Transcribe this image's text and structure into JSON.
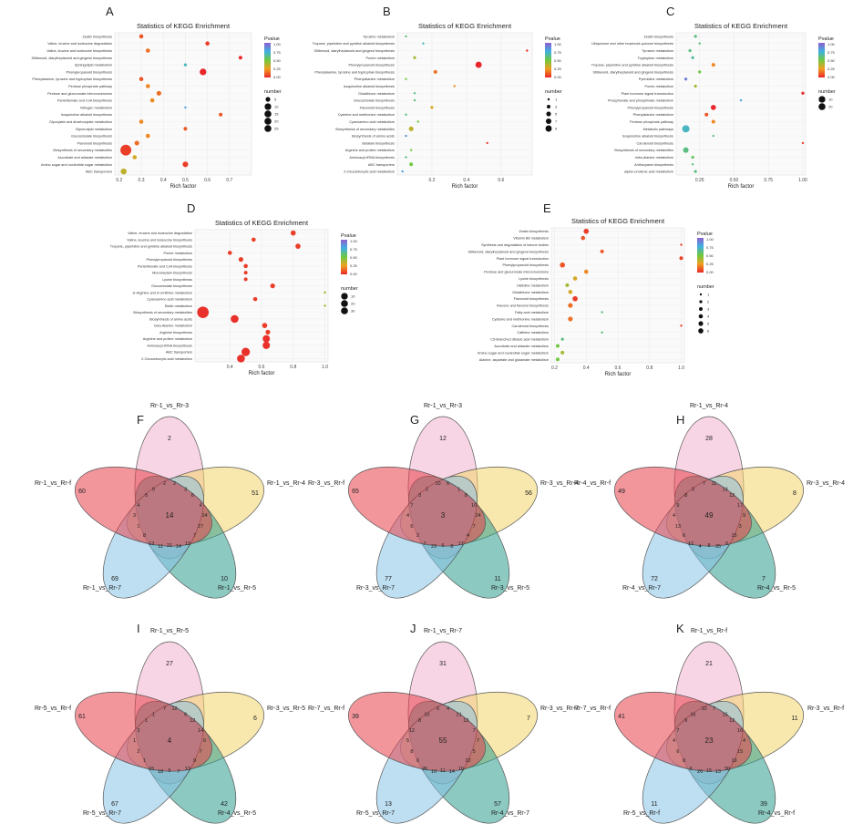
{
  "colors": {
    "high": "#e8262b",
    "mid": "#f0a020",
    "midlow": "#c8d030",
    "low": "#50c060",
    "lowest": "#9060c8",
    "grid": "#e4e4e4"
  },
  "dot_charts": [
    {
      "letter": "A",
      "title": "Statistics of KEGG Enrichment",
      "xlabel": "Rich factor",
      "xlim": [
        0.18,
        0.8
      ],
      "xticks": [
        "0.2",
        "0.3",
        "0.4",
        "0.5",
        "0.6",
        "0.7"
      ],
      "xtickvals": [
        0.2,
        0.3,
        0.4,
        0.5,
        0.6,
        0.7
      ],
      "legend_title": "Pvalue",
      "legend_ticks": [
        "1.00",
        "0.75",
        "0.50",
        "0.25",
        "0.00"
      ],
      "size_title": "number",
      "size_ticks": [
        "5",
        "10",
        "15",
        "20",
        "25"
      ],
      "terms": [
        "Zeatin biosynthesis",
        "Valine, leucine and isoleucine degradation",
        "Valine, leucine and isoleucine biosynthesis",
        "Stilbenoid, diarylheptanoid and gingerol biosynthesis",
        "Sphingolipid metabolism",
        "Phenylpropanoid biosynthesis",
        "Phenylalanine, tyrosine and tryptophan biosynthesis",
        "Pentose phosphate pathway",
        "Pentose and glucuronate interconversions",
        "Pantothenate and CoA biosynthesis",
        "Nitrogen metabolism",
        "Isoquinoline alkaloid biosynthesis",
        "Glyoxylate and dicarboxylate metabolism",
        "Glycerolipid metabolism",
        "Glucosinolate biosynthesis",
        "Flavonoid biosynthesis",
        "Biosynthesis of secondary metabolites",
        "Ascorbate and aldarate metabolism",
        "Amino sugar and nucleotide sugar metabolism",
        "ABC transporters"
      ],
      "rich": [
        0.3,
        0.6,
        0.33,
        0.75,
        0.5,
        0.58,
        0.3,
        0.33,
        0.38,
        0.35,
        0.5,
        0.66,
        0.3,
        0.5,
        0.33,
        0.28,
        0.23,
        0.27,
        0.5,
        0.22
      ],
      "pvalue": [
        0.1,
        0.05,
        0.15,
        0.01,
        0.7,
        0.0,
        0.1,
        0.2,
        0.15,
        0.2,
        0.8,
        0.1,
        0.2,
        0.1,
        0.2,
        0.15,
        0.05,
        0.3,
        0.05,
        0.35
      ],
      "number": [
        4,
        4,
        4,
        3,
        2,
        10,
        4,
        4,
        5,
        4,
        1,
        3,
        4,
        3,
        4,
        5,
        27,
        4,
        7,
        8
      ]
    },
    {
      "letter": "B",
      "title": "Statistics of KEGG Enrichment",
      "xlabel": "Rich factor",
      "xlim": [
        0.0,
        0.78
      ],
      "xticks": [
        "0.2",
        "0.4",
        "0.6"
      ],
      "xtickvals": [
        0.2,
        0.4,
        0.6
      ],
      "legend_title": "Pvalue",
      "legend_ticks": [
        "1.00",
        "0.75",
        "0.50",
        "0.25",
        "0.00"
      ],
      "size_title": "number",
      "size_ticks": [
        "1",
        "3",
        "5",
        "7",
        "9"
      ],
      "terms": [
        "Tyrosine metabolism",
        "Tropane, piperidine and pyridine alkaloid biosynthesis",
        "Stilbenoid, diarylheptanoid and gingerol biosynthesis",
        "Purine metabolism",
        "Phenylpropanoid biosynthesis",
        "Phenylalanine, tyrosine and tryptophan biosynthesis",
        "Phenylalanine metabolism",
        "Isoquinoline alkaloid biosynthesis",
        "Glutathione metabolism",
        "Glucosinolate biosynthesis",
        "Flavonoid biosynthesis",
        "Cysteine and methionine metabolism",
        "Cyanoamino acid metabolism",
        "Biosynthesis of secondary metabolites",
        "Biosynthesis of amino acids",
        "Betalain biosynthesis",
        "Arginine and proline metabolism",
        "Aminoacyl-tRNA biosynthesis",
        "ABC transporters",
        "2-Oxocarboxylic acid metabolism"
      ],
      "rich": [
        0.05,
        0.15,
        0.75,
        0.1,
        0.47,
        0.22,
        0.05,
        0.33,
        0.1,
        0.1,
        0.2,
        0.05,
        0.12,
        0.08,
        0.05,
        0.52,
        0.08,
        0.05,
        0.08,
        0.03
      ],
      "pvalue": [
        0.6,
        0.7,
        0.02,
        0.4,
        0.0,
        0.15,
        0.5,
        0.2,
        0.6,
        0.6,
        0.3,
        0.6,
        0.5,
        0.35,
        0.85,
        0.05,
        0.5,
        0.6,
        0.5,
        0.8
      ],
      "number": [
        1,
        1,
        1,
        2,
        9,
        3,
        1,
        1,
        1,
        1,
        2,
        1,
        1,
        5,
        1,
        1,
        1,
        1,
        3,
        1
      ]
    },
    {
      "letter": "C",
      "title": "Statistics of KEGG Enrichment",
      "xlabel": "Rich factor",
      "xlim": [
        0.08,
        1.02
      ],
      "xticks": [
        "0.25",
        "0.50",
        "0.75",
        "1.00"
      ],
      "xtickvals": [
        0.25,
        0.5,
        0.75,
        1.0
      ],
      "legend_title": "Pvalue",
      "legend_ticks": [
        "1.00",
        "0.75",
        "0.50",
        "0.25",
        "0.00"
      ],
      "size_title": "number",
      "size_ticks": [
        "10",
        "20"
      ],
      "terms": [
        "Zeatin biosynthesis",
        "Ubiquinone and other terpenoid-quinone biosynthesis",
        "Tyrosine metabolism",
        "Tryptophan metabolism",
        "Tropane, piperidine and pyridine alkaloid biosynthesis",
        "Stilbenoid, diarylheptanoid and gingerol biosynthesis",
        "Pyrimidine metabolism",
        "Purine metabolism",
        "Plant hormone signal transduction",
        "Phosphonate and phosphinate metabolism",
        "Phenylpropanoid biosynthesis",
        "Phenylalanine metabolism",
        "Pentose phosphate pathway",
        "Metabolic pathways",
        "Isoquinoline alkaloid biosynthesis",
        "Carotenoid biosynthesis",
        "Biosynthesis of secondary metabolites",
        "beta-Alanine metabolism",
        "Anthocyanin biosynthesis",
        "alpha-Linolenic acid metabolism"
      ],
      "rich": [
        0.22,
        0.25,
        0.18,
        0.2,
        0.35,
        0.25,
        0.15,
        0.22,
        1.0,
        0.55,
        0.35,
        0.3,
        0.35,
        0.15,
        0.35,
        1.0,
        0.15,
        0.2,
        0.2,
        0.22
      ],
      "pvalue": [
        0.6,
        0.6,
        0.6,
        0.65,
        0.2,
        0.5,
        0.9,
        0.4,
        0.0,
        0.8,
        0.0,
        0.1,
        0.2,
        0.7,
        0.6,
        0.05,
        0.6,
        0.55,
        0.6,
        0.6
      ],
      "number": [
        2,
        1,
        2,
        2,
        3,
        2,
        2,
        2,
        2,
        1,
        6,
        3,
        3,
        12,
        1,
        1,
        7,
        2,
        1,
        2
      ]
    },
    {
      "letter": "D",
      "title": "Statistics of KEGG Enrichment",
      "xlabel": "Rich factor",
      "xlim": [
        0.18,
        1.02
      ],
      "xticks": [
        "0.4",
        "0.6",
        "0.8",
        "1.0"
      ],
      "xtickvals": [
        0.4,
        0.6,
        0.8,
        1.0
      ],
      "legend_title": "Pvalue",
      "legend_ticks": [
        "1.00",
        "0.75",
        "0.50",
        "0.25",
        "0.00"
      ],
      "size_title": "number",
      "size_ticks": [
        "10",
        "20",
        "30"
      ],
      "terms": [
        "Valine, leucine and isoleucine degradation",
        "Valine, leucine and isoleucine biosynthesis",
        "Tropane, piperidine and pyridine alkaloid biosynthesis",
        "Purine metabolism",
        "Phenylpropanoid biosynthesis",
        "Pantothenate and CoA biosynthesis",
        "Monobactam biosynthesis",
        "Lysine biosynthesis",
        "Glucosinolate biosynthesis",
        "D-Arginine and D-ornithine metabolism",
        "Cyanoamino acid metabolism",
        "Biotin metabolism",
        "Biosynthesis of secondary metabolites",
        "Biosynthesis of amino acids",
        "beta-Alanine metabolism",
        "Arginine biosynthesis",
        "Arginine and proline metabolism",
        "Aminoacyl-tRNA biosynthesis",
        "ABC transporters",
        "2-Oxocarboxylic acid metabolism"
      ],
      "rich": [
        0.8,
        0.55,
        0.83,
        0.4,
        0.47,
        0.5,
        0.5,
        0.5,
        0.67,
        1.0,
        0.56,
        1.0,
        0.23,
        0.43,
        0.62,
        0.64,
        0.63,
        0.63,
        0.5,
        0.47
      ],
      "pvalue": [
        0.05,
        0.05,
        0.05,
        0.05,
        0.05,
        0.05,
        0.05,
        0.05,
        0.05,
        0.4,
        0.05,
        0.4,
        0.02,
        0.02,
        0.05,
        0.05,
        0.02,
        0.02,
        0.02,
        0.02
      ],
      "number": [
        6,
        4,
        6,
        4,
        5,
        4,
        3,
        3,
        5,
        1,
        4,
        1,
        30,
        14,
        6,
        5,
        12,
        12,
        16,
        14
      ]
    },
    {
      "letter": "E",
      "title": "Statistics of KEGG Enrichment",
      "xlabel": "Rich factor",
      "xlim": [
        0.18,
        1.02
      ],
      "xticks": [
        "0.2",
        "0.4",
        "0.6",
        "0.8",
        "1.0"
      ],
      "xtickvals": [
        0.2,
        0.4,
        0.6,
        0.8,
        1.0
      ],
      "legend_title": "Pvalue",
      "legend_ticks": [
        "1.00",
        "0.75",
        "0.50",
        "0.25",
        "0.00"
      ],
      "size_title": "number",
      "size_ticks": [
        "1",
        "2",
        "3",
        "4",
        "5",
        "6"
      ],
      "terms": [
        "Zeatin biosynthesis",
        "Vitamin B6 metabolism",
        "Synthesis and degradation of ketone bodies",
        "Stilbenoid, diarylheptanoid and gingerol biosynthesis",
        "Plant hormone signal transduction",
        "Phenylpropanoid biosynthesis",
        "Pentose and glucuronate interconversions",
        "Lysine biosynthesis",
        "Histidine metabolism",
        "Glutathione metabolism",
        "Flavonoid biosynthesis",
        "Flavone and flavonol biosynthesis",
        "Fatty acid metabolism",
        "Cysteine and methionine metabolism",
        "Carotenoid biosynthesis",
        "Caffeine metabolism",
        "C5-Branched dibasic acid metabolism",
        "Ascorbate and aldarate metabolism",
        "Amino sugar and nucleotide sugar metabolism",
        "Alanine, aspartate and glutamate metabolism"
      ],
      "rich": [
        0.4,
        0.38,
        1.0,
        0.5,
        1.0,
        0.25,
        0.4,
        0.33,
        0.28,
        0.3,
        0.33,
        0.3,
        0.5,
        0.3,
        1.0,
        0.5,
        0.25,
        0.22,
        0.25,
        0.22
      ],
      "pvalue": [
        0.05,
        0.1,
        0.05,
        0.1,
        0.05,
        0.1,
        0.2,
        0.3,
        0.4,
        0.3,
        0.05,
        0.15,
        0.6,
        0.15,
        0.05,
        0.6,
        0.6,
        0.5,
        0.4,
        0.5
      ],
      "number": [
        6,
        4,
        1,
        3,
        3,
        6,
        4,
        4,
        3,
        4,
        6,
        5,
        1,
        5,
        1,
        1,
        2,
        3,
        3,
        3
      ]
    }
  ],
  "venns": [
    {
      "letter": "F",
      "labels": [
        "Rr-1_vs_Rr-3",
        "Rr-1_vs_Rr-4",
        "Rr-1_vs_Rr-5",
        "Rr-1_vs_Rr-7",
        "Rr-1_vs_Rr-f"
      ],
      "unique": [
        "2",
        "51",
        "10",
        "69",
        "60"
      ],
      "center": "14",
      "others": [
        "2",
        "3",
        "6",
        "4",
        "24",
        "27",
        "7",
        "13",
        "14",
        "21",
        "11",
        "13",
        "8",
        "1",
        "3",
        "4",
        "5",
        "9",
        "2"
      ]
    },
    {
      "letter": "G",
      "labels": [
        "Rr-1_vs_Rr-3",
        "Rr-3_vs_Rr-4",
        "Rr-3_vs_Rr-5",
        "Rr-3_vs_Rr-7",
        "Rr-3_vs_Rr-f"
      ],
      "unique": [
        "12",
        "56",
        "11",
        "77",
        "65"
      ],
      "center": "3",
      "others": [
        "6",
        "1",
        "8",
        "10",
        "24",
        "7",
        "4",
        "17",
        "8",
        "6",
        "22",
        "7",
        "2",
        "6",
        "4",
        "7",
        "3",
        "2",
        "10"
      ]
    },
    {
      "letter": "H",
      "labels": [
        "Rr-1_vs_Rr-4",
        "Rr-3_vs_Rr-4",
        "Rr-4_vs_Rr-5",
        "Rr-4_vs_Rr-7",
        "Rr-4_vs_Rr-f"
      ],
      "unique": [
        "28",
        "8",
        "7",
        "72",
        "49"
      ],
      "center": "49",
      "others": [
        "11",
        "13",
        "12",
        "17",
        "9",
        "3",
        "15",
        "6",
        "35",
        "8",
        "4",
        "12",
        "6",
        "13",
        "4",
        "9",
        "8",
        "3",
        "7"
      ]
    },
    {
      "letter": "I",
      "labels": [
        "Rr-1_vs_Rr-5",
        "Rr-3_vs_Rr-5",
        "Rr-4_vs_Rr-5",
        "Rr-5_vs_Rr-7",
        "Rr-5_vs_Rr-f"
      ],
      "unique": [
        "27",
        "6",
        "42",
        "67",
        "61"
      ],
      "center": "4",
      "others": [
        "12",
        "6",
        "12",
        "14",
        "6",
        "7",
        "9",
        "13",
        "7",
        "5",
        "18",
        "15",
        "1",
        "2",
        "1",
        "3",
        "1",
        "1",
        "7"
      ]
    },
    {
      "letter": "J",
      "labels": [
        "Rr-1_vs_Rr-7",
        "Rr-3_vs_Rr-7",
        "Rr-4_vs_Rr-7",
        "Rr-5_vs_Rr-7",
        "Rr-7_vs_Rr-f"
      ],
      "unique": [
        "31",
        "7",
        "57",
        "13",
        "39"
      ],
      "center": "55",
      "others": [
        "4",
        "21",
        "12",
        "7",
        "7",
        "5",
        "22",
        "10",
        "14",
        "11",
        "10",
        "26",
        "6",
        "8",
        "5",
        "12",
        "8",
        "10",
        "6"
      ]
    },
    {
      "letter": "K",
      "labels": [
        "Rr-1_vs_Rr-f",
        "Rr-3_vs_Rr-f",
        "Rr-4_vs_Rr-f",
        "Rr-5_vs_Rr-f",
        "Rr-7_vs_Rr-f"
      ],
      "unique": [
        "21",
        "11",
        "39",
        "11",
        "41"
      ],
      "center": "23",
      "others": [
        "7",
        "15",
        "12",
        "16",
        "4",
        "15",
        "19",
        "30",
        "13",
        "15",
        "20",
        "6",
        "8",
        "6",
        "4",
        "7",
        "9",
        "16",
        "10"
      ]
    }
  ]
}
